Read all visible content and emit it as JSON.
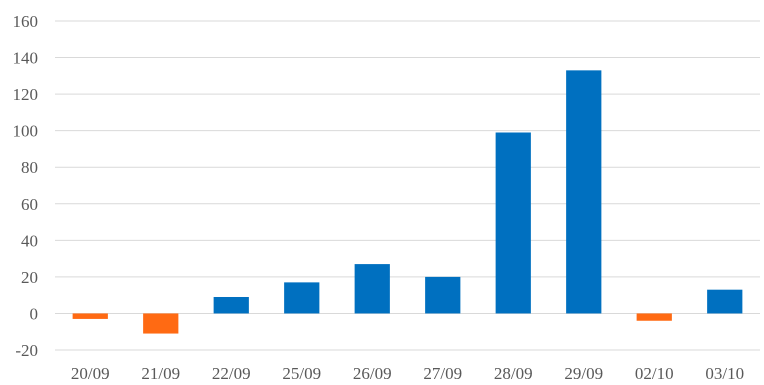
{
  "chart_data": {
    "type": "bar",
    "title": "",
    "xlabel": "",
    "ylabel": "",
    "categories": [
      "20/09",
      "21/09",
      "22/09",
      "25/09",
      "26/09",
      "27/09",
      "28/09",
      "29/09",
      "02/10",
      "03/10"
    ],
    "values": [
      -3,
      -11,
      9,
      17,
      27,
      20,
      99,
      133,
      -4,
      13
    ],
    "ylim": [
      -20,
      160
    ],
    "yticks": [
      "-20",
      "0",
      "20",
      "40",
      "60",
      "80",
      "100",
      "120",
      "140",
      "160"
    ],
    "grid": "horizontal",
    "legend": "none",
    "colors": {
      "positive": "#0070C0",
      "negative": "#FF6A13"
    }
  }
}
